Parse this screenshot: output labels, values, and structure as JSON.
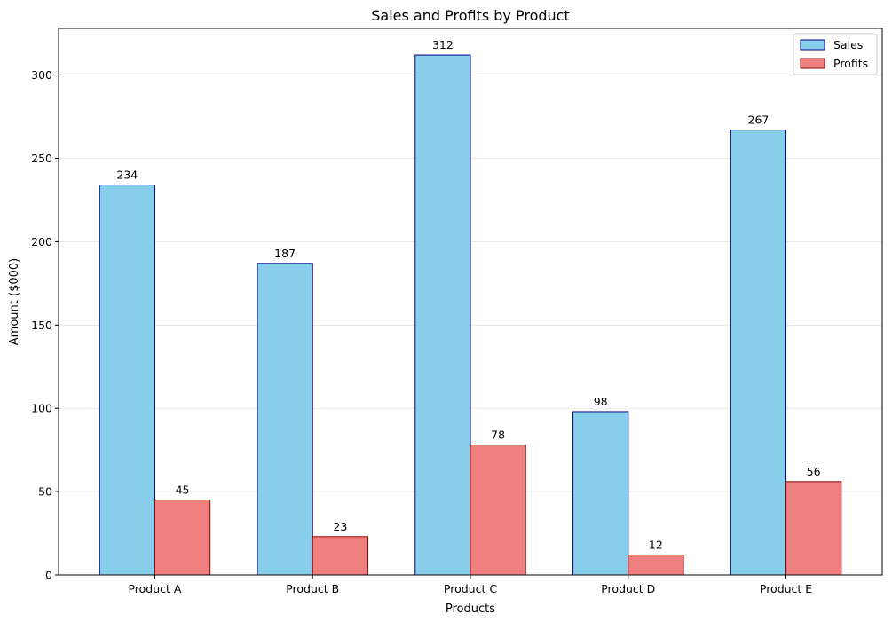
{
  "chart_data": {
    "type": "bar",
    "title": "Sales and Profits by Product",
    "xlabel": "Products",
    "ylabel": "Amount ($000)",
    "categories": [
      "Product A",
      "Product B",
      "Product C",
      "Product D",
      "Product E"
    ],
    "series": [
      {
        "name": "Sales",
        "values": [
          234,
          187,
          312,
          98,
          267
        ],
        "color": "#87CEEB",
        "edge_color": "#00008B"
      },
      {
        "name": "Profits",
        "values": [
          45,
          23,
          78,
          12,
          56
        ],
        "color": "#F08080",
        "edge_color": "#8B0000"
      }
    ],
    "ylim": [
      0,
      328
    ],
    "yticks": [
      0,
      50,
      100,
      150,
      200,
      250,
      300
    ],
    "grid": "y",
    "legend_position": "top-right"
  }
}
